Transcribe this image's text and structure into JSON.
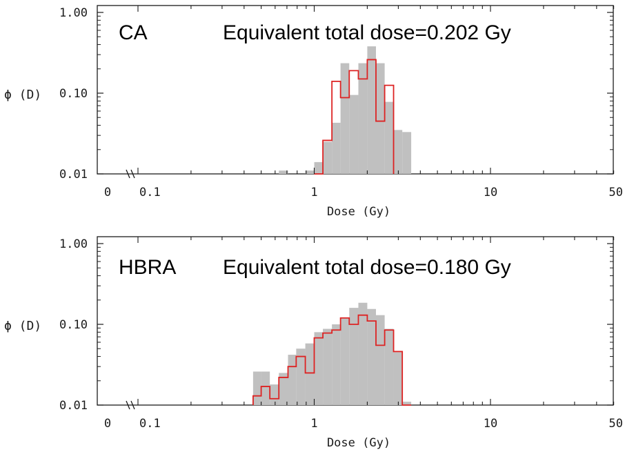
{
  "chart_data": [
    {
      "type": "bar",
      "panel_label": "CA",
      "title": "Equivalent total dose=0.202 Gy",
      "xlabel": "Dose (Gy)",
      "ylabel": "ϕ (D)",
      "x_scale": "log",
      "y_scale": "log",
      "xlim": [
        0.1,
        50
      ],
      "ylim": [
        0.01,
        1.0
      ],
      "x_tick_labels": [
        {
          "value": null,
          "label": "0"
        },
        {
          "value": 0.1,
          "label": "0.1"
        },
        {
          "value": 1,
          "label": "1"
        },
        {
          "value": 10,
          "label": "10"
        },
        {
          "value": 50,
          "label": "50"
        }
      ],
      "y_tick_labels": [
        {
          "value": 1.0,
          "label": "1.00"
        },
        {
          "value": 0.1,
          "label": "0.10"
        },
        {
          "value": 0.01,
          "label": "0.01"
        }
      ],
      "bin_edges": [
        0.63,
        0.71,
        0.79,
        0.89,
        1.0,
        1.12,
        1.26,
        1.41,
        1.58,
        1.78,
        2.0,
        2.24,
        2.51,
        2.82,
        3.16,
        3.55
      ],
      "series": [
        {
          "style": "filled-gray",
          "values": [
            0.011,
            0.01,
            0.01,
            0.011,
            0.014,
            0.025,
            0.043,
            0.235,
            0.095,
            0.235,
            0.38,
            0.235,
            0.078,
            0.035,
            0.033
          ]
        },
        {
          "style": "red-step",
          "values": [
            null,
            null,
            null,
            null,
            0.01,
            0.026,
            0.14,
            0.088,
            0.19,
            0.15,
            0.26,
            0.045,
            0.125,
            null,
            null
          ]
        }
      ],
      "colors": {
        "gray_band": "#c0c0c0",
        "red_line": "#dd2222"
      }
    },
    {
      "type": "bar",
      "panel_label": "HBRA",
      "title": "Equivalent total dose=0.180 Gy",
      "xlabel": "Dose (Gy)",
      "ylabel": "ϕ (D)",
      "x_scale": "log",
      "y_scale": "log",
      "xlim": [
        0.1,
        50
      ],
      "ylim": [
        0.01,
        1.0
      ],
      "x_tick_labels": [
        {
          "value": null,
          "label": "0"
        },
        {
          "value": 0.1,
          "label": "0.1"
        },
        {
          "value": 1,
          "label": "1"
        },
        {
          "value": 10,
          "label": "10"
        },
        {
          "value": 50,
          "label": "50"
        }
      ],
      "y_tick_labels": [
        {
          "value": 1.0,
          "label": "1.00"
        },
        {
          "value": 0.1,
          "label": "0.10"
        },
        {
          "value": 0.01,
          "label": "0.01"
        }
      ],
      "bin_edges": [
        0.45,
        0.5,
        0.56,
        0.63,
        0.71,
        0.79,
        0.89,
        1.0,
        1.12,
        1.26,
        1.41,
        1.58,
        1.78,
        2.0,
        2.24,
        2.51,
        2.82,
        3.16,
        3.55
      ],
      "series": [
        {
          "style": "filled-gray",
          "values": [
            0.026,
            0.026,
            0.018,
            0.025,
            0.042,
            0.05,
            0.058,
            0.08,
            0.088,
            0.1,
            0.12,
            0.16,
            0.185,
            0.155,
            0.13,
            0.088,
            0.045,
            0.011
          ]
        },
        {
          "style": "red-step",
          "values": [
            0.013,
            0.017,
            0.012,
            0.022,
            0.03,
            0.04,
            0.025,
            0.068,
            0.078,
            0.085,
            0.12,
            0.1,
            0.13,
            0.11,
            0.055,
            0.085,
            0.046,
            0.01
          ]
        }
      ],
      "colors": {
        "gray_band": "#c0c0c0",
        "red_line": "#dd2222"
      }
    }
  ]
}
